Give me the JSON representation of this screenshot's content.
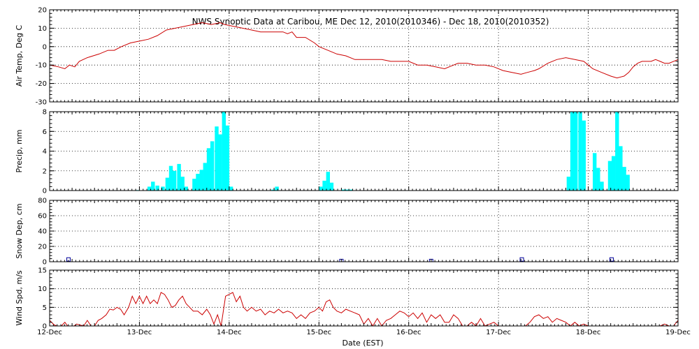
{
  "chart_data": {
    "type": "multi-panel time series",
    "title": "NWS Synoptic Data at Caribou, ME    Dec 12, 2010(2010346) - Dec 18, 2010(2010352)",
    "xlabel": "Date (EST)",
    "x_ticks": [
      "12-Dec",
      "13-Dec",
      "14-Dec",
      "15-Dec",
      "16-Dec",
      "17-Dec",
      "18-Dec",
      "19-Dec"
    ],
    "x_range_days": [
      0,
      7
    ],
    "grid": true,
    "panels": [
      {
        "name": "air_temp",
        "type": "line",
        "ylabel": "Air Temp, Deg C",
        "ylim": [
          -30,
          20
        ],
        "yticks": [
          20,
          10,
          0,
          -10,
          -20,
          -30
        ],
        "color": "#cc0000",
        "points": [
          [
            0.0,
            -10
          ],
          [
            0.1,
            -11
          ],
          [
            0.17,
            -12
          ],
          [
            0.22,
            -10
          ],
          [
            0.28,
            -11
          ],
          [
            0.33,
            -8
          ],
          [
            0.42,
            -6
          ],
          [
            0.55,
            -4
          ],
          [
            0.65,
            -2
          ],
          [
            0.72,
            -2
          ],
          [
            0.8,
            0
          ],
          [
            0.9,
            2
          ],
          [
            1.0,
            3
          ],
          [
            1.1,
            4
          ],
          [
            1.2,
            6
          ],
          [
            1.3,
            9
          ],
          [
            1.4,
            10
          ],
          [
            1.5,
            11
          ],
          [
            1.6,
            12
          ],
          [
            1.7,
            13
          ],
          [
            1.8,
            12
          ],
          [
            1.9,
            13
          ],
          [
            1.95,
            12
          ],
          [
            2.05,
            11
          ],
          [
            2.15,
            10
          ],
          [
            2.25,
            9
          ],
          [
            2.35,
            8
          ],
          [
            2.5,
            8
          ],
          [
            2.6,
            8
          ],
          [
            2.65,
            7
          ],
          [
            2.7,
            8
          ],
          [
            2.75,
            5
          ],
          [
            2.85,
            5
          ],
          [
            2.95,
            2
          ],
          [
            3.0,
            0
          ],
          [
            3.1,
            -2
          ],
          [
            3.2,
            -4
          ],
          [
            3.3,
            -5
          ],
          [
            3.4,
            -7
          ],
          [
            3.5,
            -7
          ],
          [
            3.6,
            -7
          ],
          [
            3.7,
            -7
          ],
          [
            3.8,
            -8
          ],
          [
            3.9,
            -8
          ],
          [
            4.0,
            -8
          ],
          [
            4.1,
            -10
          ],
          [
            4.2,
            -10
          ],
          [
            4.3,
            -11
          ],
          [
            4.4,
            -12
          ],
          [
            4.5,
            -10
          ],
          [
            4.55,
            -9
          ],
          [
            4.65,
            -9
          ],
          [
            4.75,
            -10
          ],
          [
            4.85,
            -10
          ],
          [
            4.95,
            -11
          ],
          [
            5.05,
            -13
          ],
          [
            5.15,
            -14
          ],
          [
            5.25,
            -15
          ],
          [
            5.32,
            -14
          ],
          [
            5.4,
            -13
          ],
          [
            5.45,
            -12
          ],
          [
            5.55,
            -9
          ],
          [
            5.65,
            -7
          ],
          [
            5.75,
            -6
          ],
          [
            5.85,
            -7
          ],
          [
            5.95,
            -8
          ],
          [
            6.0,
            -10
          ],
          [
            6.05,
            -12
          ],
          [
            6.15,
            -14
          ],
          [
            6.25,
            -16
          ],
          [
            6.32,
            -17
          ],
          [
            6.4,
            -16
          ],
          [
            6.45,
            -14
          ],
          [
            6.5,
            -11
          ],
          [
            6.55,
            -9
          ],
          [
            6.6,
            -8
          ],
          [
            6.7,
            -8
          ],
          [
            6.75,
            -7
          ],
          [
            6.8,
            -8
          ],
          [
            6.85,
            -9
          ],
          [
            6.9,
            -9
          ],
          [
            6.95,
            -8
          ],
          [
            7.0,
            -7
          ]
        ]
      },
      {
        "name": "precip",
        "type": "bar",
        "ylabel": "Precip, mm",
        "ylim": [
          0,
          8
        ],
        "yticks": [
          8,
          6,
          4,
          2,
          0
        ],
        "color": "#00ffff",
        "bar_width_days": 0.042,
        "bars": [
          [
            0.96,
            0.05
          ],
          [
            1.09,
            0.4
          ],
          [
            1.13,
            0.9
          ],
          [
            1.18,
            0.5
          ],
          [
            1.24,
            0.4
          ],
          [
            1.29,
            1.3
          ],
          [
            1.33,
            2.5
          ],
          [
            1.37,
            2.0
          ],
          [
            1.42,
            2.7
          ],
          [
            1.46,
            1.4
          ],
          [
            1.5,
            0.4
          ],
          [
            1.59,
            1.2
          ],
          [
            1.63,
            1.7
          ],
          [
            1.67,
            2.1
          ],
          [
            1.71,
            2.8
          ],
          [
            1.75,
            4.3
          ],
          [
            1.79,
            5.0
          ],
          [
            1.84,
            6.5
          ],
          [
            1.88,
            5.7
          ],
          [
            1.92,
            9.2
          ],
          [
            1.96,
            6.6
          ],
          [
            2.0,
            0.4
          ],
          [
            2.47,
            0.1
          ],
          [
            2.51,
            0.4
          ],
          [
            3.0,
            0.4
          ],
          [
            3.04,
            1.0
          ],
          [
            3.08,
            1.9
          ],
          [
            3.12,
            0.8
          ],
          [
            3.25,
            0.1
          ],
          [
            3.29,
            0.1
          ],
          [
            3.33,
            0.1
          ],
          [
            5.76,
            1.4
          ],
          [
            5.8,
            9.6
          ],
          [
            5.84,
            8.5
          ],
          [
            5.89,
            10.0
          ],
          [
            5.93,
            7.1
          ],
          [
            6.05,
            3.8
          ],
          [
            6.09,
            2.3
          ],
          [
            6.13,
            0.9
          ],
          [
            6.22,
            3.0
          ],
          [
            6.26,
            3.5
          ],
          [
            6.3,
            9.7
          ],
          [
            6.34,
            4.5
          ],
          [
            6.38,
            2.4
          ],
          [
            6.42,
            1.6
          ]
        ]
      },
      {
        "name": "snow_depth",
        "type": "scatter",
        "ylabel": "Snow Dep, cm",
        "ylim": [
          0,
          80
        ],
        "yticks": [
          80,
          60,
          40,
          20,
          0
        ],
        "color": "#000099",
        "points": [
          [
            0.21,
            3
          ],
          [
            3.25,
            1
          ],
          [
            4.25,
            1
          ],
          [
            5.26,
            3
          ],
          [
            6.26,
            3
          ]
        ]
      },
      {
        "name": "wind_speed",
        "type": "line",
        "ylabel": "Wind Spd, m/s",
        "ylim": [
          0,
          15
        ],
        "yticks": [
          15,
          10,
          5,
          0
        ],
        "color": "#cc0000",
        "points": [
          [
            0.0,
            1.5
          ],
          [
            0.05,
            0.3
          ],
          [
            0.08,
            0
          ],
          [
            0.13,
            0
          ],
          [
            0.17,
            1
          ],
          [
            0.2,
            0
          ],
          [
            0.27,
            0
          ],
          [
            0.3,
            0.5
          ],
          [
            0.38,
            0
          ],
          [
            0.42,
            1.5
          ],
          [
            0.46,
            0
          ],
          [
            0.5,
            0
          ],
          [
            0.54,
            1.5
          ],
          [
            0.58,
            2
          ],
          [
            0.63,
            3
          ],
          [
            0.67,
            4.5
          ],
          [
            0.71,
            4.3
          ],
          [
            0.75,
            5
          ],
          [
            0.79,
            4.5
          ],
          [
            0.83,
            3
          ],
          [
            0.88,
            5
          ],
          [
            0.92,
            8
          ],
          [
            0.96,
            6
          ],
          [
            1.0,
            8
          ],
          [
            1.04,
            6
          ],
          [
            1.08,
            8
          ],
          [
            1.12,
            6
          ],
          [
            1.16,
            7
          ],
          [
            1.2,
            6
          ],
          [
            1.24,
            9
          ],
          [
            1.28,
            8.5
          ],
          [
            1.32,
            7
          ],
          [
            1.36,
            5
          ],
          [
            1.4,
            5.5
          ],
          [
            1.44,
            7
          ],
          [
            1.48,
            8
          ],
          [
            1.52,
            6
          ],
          [
            1.56,
            5
          ],
          [
            1.6,
            4
          ],
          [
            1.65,
            4
          ],
          [
            1.7,
            3
          ],
          [
            1.75,
            4.5
          ],
          [
            1.79,
            3
          ],
          [
            1.83,
            0.5
          ],
          [
            1.87,
            3
          ],
          [
            1.91,
            0
          ],
          [
            1.96,
            8
          ],
          [
            2.0,
            8.5
          ],
          [
            2.04,
            9
          ],
          [
            2.08,
            6.5
          ],
          [
            2.12,
            8
          ],
          [
            2.16,
            5
          ],
          [
            2.2,
            4
          ],
          [
            2.25,
            5
          ],
          [
            2.3,
            4
          ],
          [
            2.35,
            4.5
          ],
          [
            2.4,
            3
          ],
          [
            2.45,
            4
          ],
          [
            2.5,
            3.5
          ],
          [
            2.55,
            4.5
          ],
          [
            2.6,
            3.5
          ],
          [
            2.65,
            4
          ],
          [
            2.7,
            3.5
          ],
          [
            2.75,
            2
          ],
          [
            2.8,
            3
          ],
          [
            2.85,
            2
          ],
          [
            2.9,
            3.5
          ],
          [
            2.95,
            4
          ],
          [
            3.0,
            5
          ],
          [
            3.04,
            4
          ],
          [
            3.08,
            6.5
          ],
          [
            3.12,
            7
          ],
          [
            3.16,
            5
          ],
          [
            3.2,
            4
          ],
          [
            3.25,
            3.5
          ],
          [
            3.3,
            4.5
          ],
          [
            3.35,
            4
          ],
          [
            3.4,
            3.5
          ],
          [
            3.45,
            3
          ],
          [
            3.5,
            0.5
          ],
          [
            3.55,
            2
          ],
          [
            3.6,
            0
          ],
          [
            3.65,
            2
          ],
          [
            3.7,
            0
          ],
          [
            3.75,
            1.5
          ],
          [
            3.8,
            2
          ],
          [
            3.85,
            3
          ],
          [
            3.9,
            4
          ],
          [
            3.95,
            3.5
          ],
          [
            4.0,
            2.5
          ],
          [
            4.05,
            3.5
          ],
          [
            4.1,
            2
          ],
          [
            4.15,
            3.5
          ],
          [
            4.2,
            1
          ],
          [
            4.25,
            3
          ],
          [
            4.3,
            2
          ],
          [
            4.35,
            3
          ],
          [
            4.4,
            1
          ],
          [
            4.45,
            1
          ],
          [
            4.5,
            3
          ],
          [
            4.55,
            2
          ],
          [
            4.6,
            0
          ],
          [
            4.65,
            0
          ],
          [
            4.7,
            1
          ],
          [
            4.75,
            0
          ],
          [
            4.8,
            2
          ],
          [
            4.85,
            0
          ],
          [
            4.9,
            0.5
          ],
          [
            4.95,
            1
          ],
          [
            5.0,
            0
          ],
          [
            5.05,
            0
          ],
          [
            5.1,
            0
          ],
          [
            5.15,
            0
          ],
          [
            5.2,
            0
          ],
          [
            5.25,
            0
          ],
          [
            5.3,
            0
          ],
          [
            5.35,
            1
          ],
          [
            5.4,
            2.5
          ],
          [
            5.45,
            3
          ],
          [
            5.5,
            2
          ],
          [
            5.55,
            2.5
          ],
          [
            5.6,
            1
          ],
          [
            5.65,
            2
          ],
          [
            5.7,
            1.5
          ],
          [
            5.75,
            1
          ],
          [
            5.8,
            0
          ],
          [
            5.85,
            1
          ],
          [
            5.9,
            0
          ],
          [
            5.95,
            0.5
          ],
          [
            6.0,
            0
          ],
          [
            6.05,
            0
          ],
          [
            6.1,
            0
          ],
          [
            6.2,
            0
          ],
          [
            6.3,
            0
          ],
          [
            6.4,
            0
          ],
          [
            6.5,
            0
          ],
          [
            6.6,
            0
          ],
          [
            6.7,
            0
          ],
          [
            6.8,
            0
          ],
          [
            6.85,
            0.5
          ],
          [
            6.9,
            0
          ],
          [
            6.95,
            0
          ],
          [
            7.0,
            1.5
          ]
        ]
      }
    ]
  }
}
